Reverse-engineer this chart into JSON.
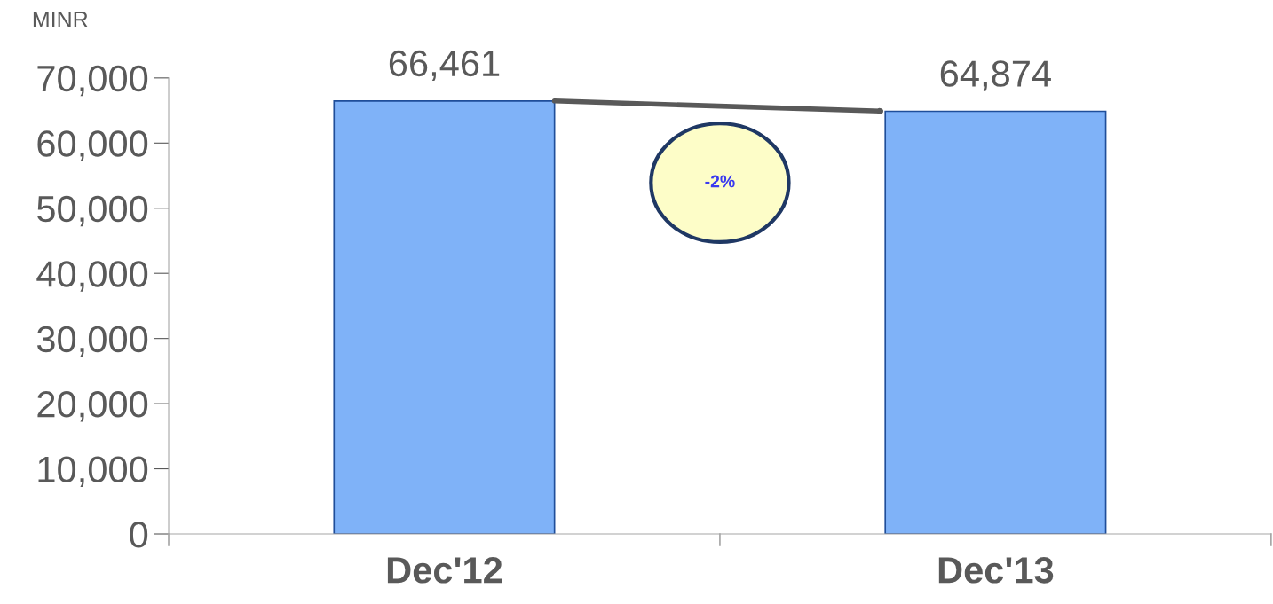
{
  "chart_data": {
    "type": "bar",
    "ylabel": "MINR",
    "categories": [
      "Dec'12",
      "Dec'13"
    ],
    "values": [
      66461,
      64874
    ],
    "color": "#7fb2f8",
    "ylim": [
      0,
      70000
    ],
    "yticks": [
      0,
      {
        "value": 10000,
        "label": "10,000"
      },
      {
        "value": 20000,
        "label": "20,000"
      },
      {
        "value": 30000,
        "label": "30,000"
      },
      {
        "value": 40000,
        "label": "40,000"
      },
      {
        "value": 50000,
        "label": "50,000"
      },
      {
        "value": 60000,
        "label": "60,000"
      },
      {
        "value": 70000,
        "label": "70,000"
      }
    ],
    "value_labels": [
      "66,461",
      "64,874"
    ],
    "grid": false,
    "annotations": [
      "-2%"
    ]
  }
}
